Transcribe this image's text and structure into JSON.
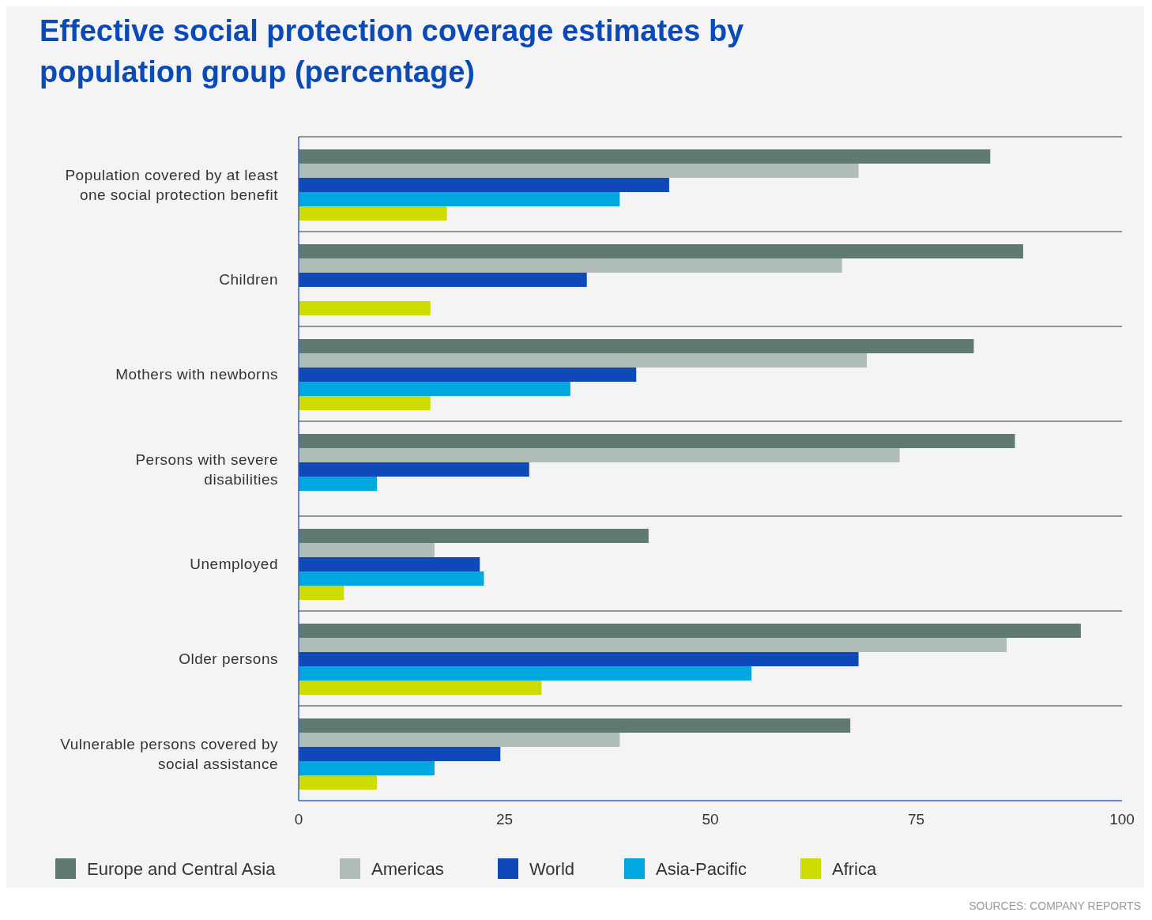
{
  "chart_data": {
    "type": "bar",
    "orientation": "horizontal",
    "title": "Effective social protection coverage estimates by population group (percentage)",
    "categories": [
      "Population covered by at least one social protection benefit",
      "Children",
      "Mothers with newborns",
      "Persons with severe disabilities",
      "Unemployed",
      "Older persons",
      "Vulnerable persons covered by social assistance"
    ],
    "series": [
      {
        "name": "Europe and Central Asia",
        "color": "#5f7a72",
        "values": [
          84,
          88,
          82,
          87,
          42.5,
          95,
          67
        ]
      },
      {
        "name": "Americas",
        "color": "#b0bcb8",
        "values": [
          68,
          66,
          69,
          73,
          16.5,
          86,
          39
        ]
      },
      {
        "name": "World",
        "color": "#0f48b8",
        "values": [
          45,
          35,
          41,
          28,
          22,
          68,
          24.5
        ]
      },
      {
        "name": "Asia-Pacific",
        "color": "#00a8e0",
        "values": [
          39,
          null,
          33,
          9.5,
          22.5,
          55,
          16.5
        ]
      },
      {
        "name": "Africa",
        "color": "#cddc00",
        "values": [
          18,
          16,
          16,
          null,
          5.5,
          29.5,
          9.5
        ]
      }
    ],
    "xlim": [
      0,
      100
    ],
    "xticks": [
      0,
      25,
      50,
      75,
      100
    ],
    "legend": "bottom",
    "annotations": [
      "SOURCES: COMPANY REPORTS"
    ]
  }
}
